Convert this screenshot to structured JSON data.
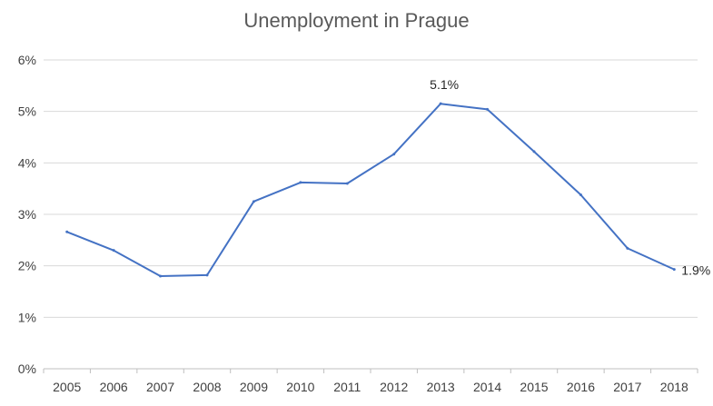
{
  "chart_data": {
    "type": "line",
    "title": "Unemployment in Prague",
    "xlabel": "",
    "ylabel": "",
    "x": [
      "2005",
      "2006",
      "2007",
      "2008",
      "2009",
      "2010",
      "2011",
      "2012",
      "2013",
      "2014",
      "2015",
      "2016",
      "2017",
      "2018"
    ],
    "series": [
      {
        "values": [
          2.66,
          2.3,
          1.8,
          1.82,
          3.25,
          3.62,
          3.6,
          4.17,
          5.15,
          5.04,
          4.22,
          3.38,
          2.34,
          1.93
        ]
      }
    ],
    "ylim": [
      0,
      6
    ],
    "yticks": [
      0,
      1,
      2,
      3,
      4,
      5,
      6
    ],
    "ytick_labels": [
      "0%",
      "1%",
      "2%",
      "3%",
      "4%",
      "5%",
      "6%"
    ],
    "data_labels": [
      {
        "x": "2013",
        "text": "5.1%"
      },
      {
        "x": "2018",
        "text": "1.9%"
      }
    ],
    "grid": true,
    "line_color": "#4472C4",
    "grid_color": "#d9d9d9"
  }
}
